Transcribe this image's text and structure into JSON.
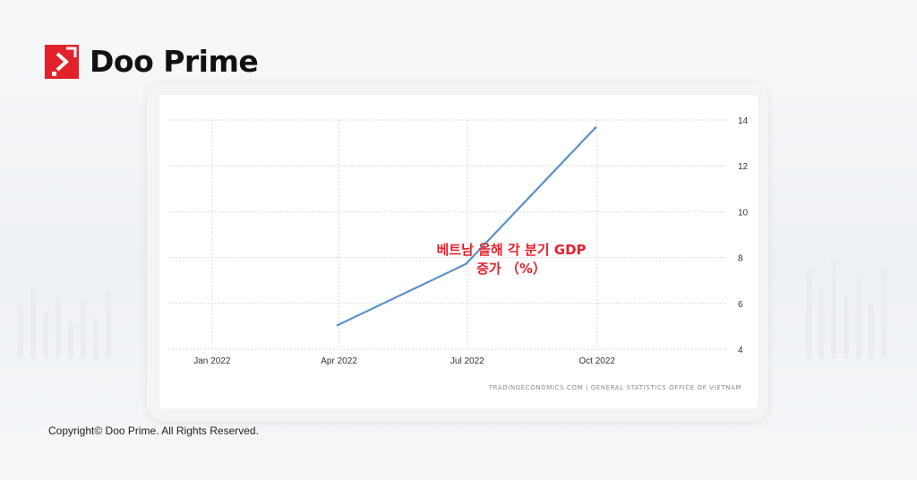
{
  "brand": {
    "name": "Doo Prime",
    "accent_color": "#e3212b",
    "logo_icon": "doo-prime-logo-icon"
  },
  "copyright": "Copyright© Doo Prime. All Rights Reserved.",
  "chart_data": {
    "type": "line",
    "title": "베트남 올해 각 분기 GDP 증가 （%）",
    "title_lines": [
      "베트남 올해 각 분기 GDP",
      "증가 （%）"
    ],
    "title_color": "#e3212b",
    "xlabel": "",
    "ylabel": "",
    "x_ticks": [
      "Jan 2022",
      "Apr 2022",
      "Jul 2022",
      "Oct 2022"
    ],
    "y_ticks": [
      4,
      6,
      8,
      10,
      12,
      14
    ],
    "ylim": [
      4,
      14
    ],
    "xlim": [
      "2021-12-01",
      "2022-12-31"
    ],
    "y_axis_side": "right",
    "grid": true,
    "source": "TRADINGECONOMICS.COM  |  GENERAL STATISTICS OFFICE OF VIETNAM",
    "series": [
      {
        "color": "#5b8fc7",
        "x": [
          "2022-03-31",
          "2022-06-30",
          "2022-09-30"
        ],
        "values": [
          5.05,
          7.72,
          13.67
        ]
      }
    ]
  }
}
